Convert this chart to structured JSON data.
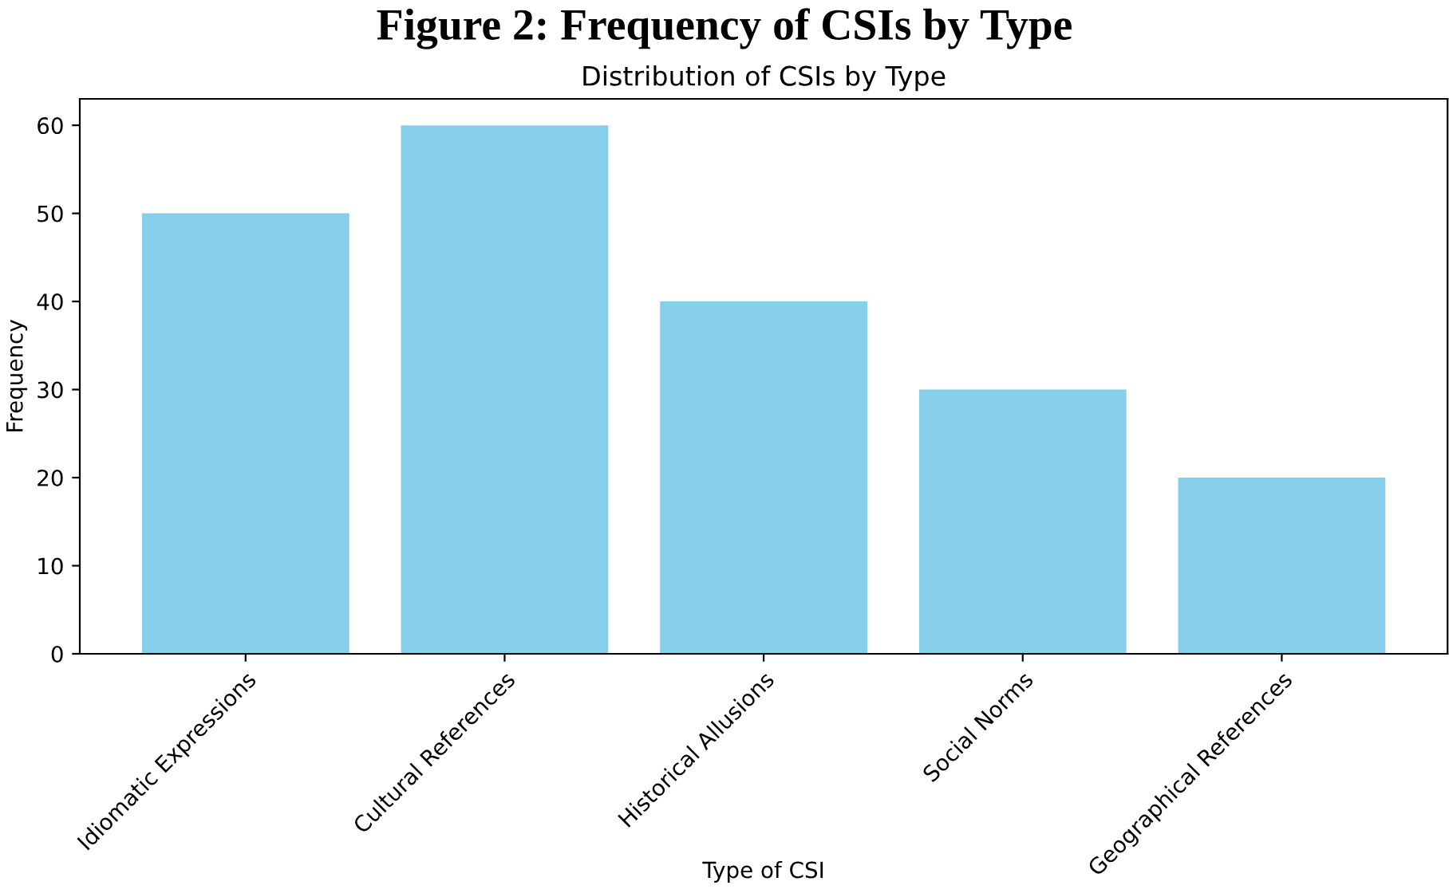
{
  "chart_data": {
    "type": "bar",
    "title": "Figure 2: Frequency of CSIs by Type",
    "subtitle": "Distribution of CSIs by Type",
    "xlabel": "Type of CSI",
    "ylabel": "Frequency",
    "categories": [
      "Idiomatic Expressions",
      "Cultural References",
      "Historical Allusions",
      "Social Norms",
      "Geographical References"
    ],
    "values": [
      50,
      60,
      40,
      30,
      20
    ],
    "color": "#87ceeb",
    "ylim": [
      0,
      63
    ],
    "yticks": [
      0,
      10,
      20,
      30,
      40,
      50,
      60
    ],
    "grid": false
  }
}
